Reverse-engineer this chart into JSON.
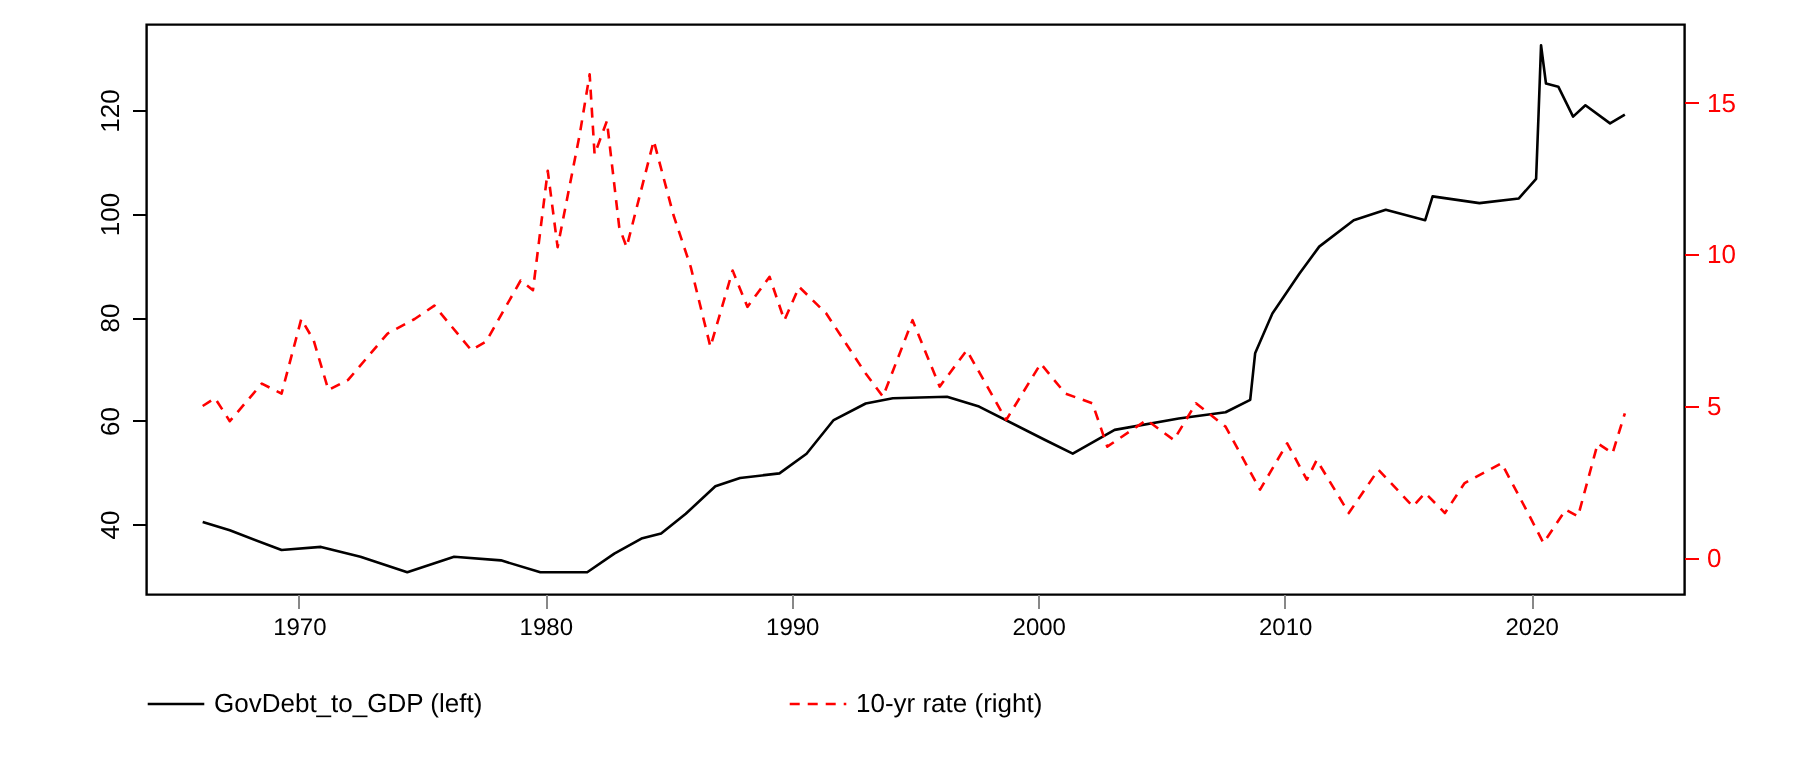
{
  "chart_data": {
    "type": "line",
    "xlim": [
      1963.8,
      2026.2
    ],
    "xticks": [
      1970,
      1980,
      1990,
      2000,
      2010,
      2020
    ],
    "ylim": [
      26.5,
      136.6
    ],
    "yticks": [
      40,
      60,
      80,
      100,
      120
    ],
    "y2lim": [
      -1.2,
      17.6
    ],
    "y2ticks": [
      0,
      5,
      10,
      15
    ],
    "grid": false,
    "legend": "bottom",
    "series": [
      {
        "name": "GovDebt_to_GDP (left)",
        "color": "#000000",
        "line_style": "solid",
        "x": [
          1966.1,
          1967.2,
          1969.3,
          1970.9,
          1972.5,
          1974.4,
          1976.3,
          1978.2,
          1979.8,
          1981.7,
          1982.8,
          1983.9,
          1984.7,
          1985.7,
          1986.9,
          1987.9,
          1989.5,
          1990.6,
          1991.7,
          1993.0,
          1994.1,
          1996.3,
          1997.6,
          2000.3,
          2001.4,
          2003.1,
          2005.7,
          2007.6,
          2008.6,
          2008.8,
          2009.5,
          2010.6,
          2011.4,
          2012.8,
          2014.1,
          2015.7,
          2016.0,
          2017.9,
          2019.5,
          2020.2,
          2020.3,
          2020.4,
          2020.6,
          2021.1,
          2021.7,
          2022.2,
          2023.2,
          2023.8
        ],
        "values": [
          40.4,
          38.8,
          35.0,
          35.6,
          33.7,
          30.7,
          33.7,
          33.0,
          30.7,
          30.7,
          34.3,
          37.2,
          38.2,
          42.0,
          47.3,
          48.9,
          49.8,
          53.6,
          60.1,
          63.3,
          64.3,
          64.6,
          62.7,
          56.2,
          53.6,
          58.2,
          60.4,
          61.6,
          64.0,
          73.0,
          80.7,
          88.4,
          93.6,
          98.7,
          100.7,
          98.7,
          103.3,
          102.0,
          102.9,
          106.7,
          119.3,
          132.5,
          125.1,
          124.5,
          118.7,
          120.9,
          117.4,
          119.1
        ]
      },
      {
        "name": "10-yr rate (right)",
        "color": "#ff0000",
        "line_style": "dashed",
        "axis": "y2",
        "x": [
          1966.1,
          1966.6,
          1967.2,
          1968.5,
          1969.3,
          1970.1,
          1970.6,
          1971.2,
          1972.0,
          1973.6,
          1974.7,
          1975.5,
          1977.0,
          1977.6,
          1979.0,
          1979.5,
          1980.1,
          1980.5,
          1981.4,
          1981.8,
          1982.0,
          1982.5,
          1983.0,
          1983.3,
          1984.4,
          1985.2,
          1985.9,
          1986.7,
          1987.6,
          1988.2,
          1989.1,
          1989.7,
          1990.3,
          1991.4,
          1993.0,
          1993.7,
          1994.9,
          1996.0,
          1997.1,
          1998.7,
          2000.1,
          2001.1,
          2002.2,
          2002.8,
          2004.4,
          2005.5,
          2006.4,
          2007.6,
          2009.0,
          2010.1,
          2010.9,
          2011.3,
          2012.6,
          2013.8,
          2015.2,
          2015.7,
          2016.5,
          2017.3,
          2018.8,
          2019.8,
          2020.5,
          2021.4,
          2021.9,
          2022.7,
          2023.3,
          2023.8
        ],
        "values": [
          5.0,
          5.26,
          4.5,
          5.74,
          5.41,
          7.87,
          7.17,
          5.53,
          5.86,
          7.39,
          7.87,
          8.31,
          6.84,
          7.13,
          9.14,
          8.82,
          12.76,
          10.24,
          13.97,
          15.94,
          13.3,
          14.4,
          10.9,
          10.24,
          13.75,
          11.3,
          9.59,
          6.95,
          9.47,
          8.27,
          9.26,
          7.83,
          8.93,
          8.05,
          6.07,
          5.31,
          7.83,
          5.64,
          6.84,
          4.54,
          6.4,
          5.41,
          5.09,
          3.66,
          4.54,
          3.88,
          5.09,
          4.32,
          2.24,
          3.77,
          2.57,
          3.22,
          1.47,
          2.9,
          1.69,
          2.13,
          1.47,
          2.46,
          3.11,
          1.58,
          0.48,
          1.58,
          1.36,
          3.77,
          3.44,
          4.76
        ]
      }
    ]
  }
}
